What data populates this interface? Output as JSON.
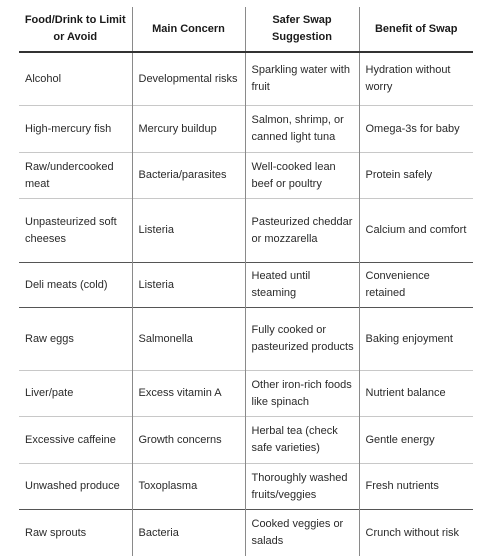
{
  "table": {
    "headers": [
      "Food/Drink to Limit or Avoid",
      "Main Concern",
      "Safer Swap Suggestion",
      "Benefit of Swap"
    ],
    "rows": [
      [
        "Alcohol",
        "Developmental risks",
        "Sparkling water with fruit",
        "Hydration without worry"
      ],
      [
        "High-mercury fish",
        "Mercury buildup",
        "Salmon, shrimp, or canned light tuna",
        "Omega-3s for baby"
      ],
      [
        "Raw/undercooked meat",
        "Bacteria/parasites",
        "Well-cooked lean beef or poultry",
        "Protein safely"
      ],
      [
        "Unpasteurized soft cheeses",
        "Listeria",
        "Pasteurized cheddar or mozzarella",
        "Calcium and comfort"
      ],
      [
        "Deli meats (cold)",
        "Listeria",
        "Heated until steaming",
        "Convenience retained"
      ],
      [
        "Raw eggs",
        "Salmonella",
        "Fully cooked or pasteurized products",
        "Baking enjoyment"
      ],
      [
        "Liver/pate",
        "Excess vitamin A",
        "Other iron-rich foods like spinach",
        "Nutrient balance"
      ],
      [
        "Excessive caffeine",
        "Growth concerns",
        "Herbal tea (check safe varieties)",
        "Gentle energy"
      ],
      [
        "Unwashed produce",
        "Toxoplasma",
        "Thoroughly washed fruits/veggies",
        "Fresh nutrients"
      ],
      [
        "Raw sprouts",
        "Bacteria",
        "Cooked veggies or salads",
        "Crunch without risk"
      ]
    ]
  }
}
